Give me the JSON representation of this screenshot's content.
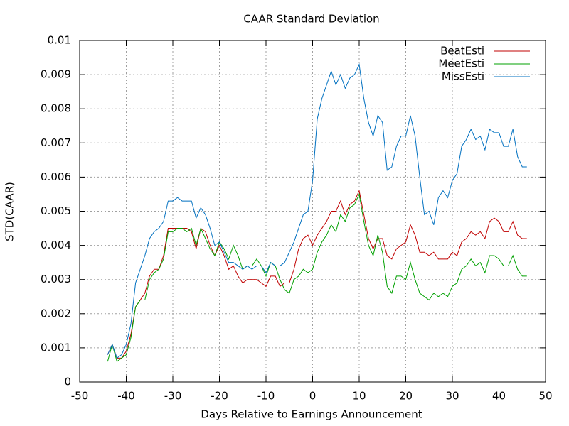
{
  "chart_data": {
    "type": "line",
    "title": "CAAR Standard Deviation",
    "xlabel": "Days Relative to Earnings Announcement",
    "ylabel": "STD(CAAR)",
    "xlim": [
      -50,
      50
    ],
    "xticks": [
      -50,
      -40,
      -30,
      -20,
      -10,
      0,
      10,
      20,
      30,
      40,
      50
    ],
    "ylim": [
      0,
      0.01
    ],
    "yticks": [
      0,
      0.001,
      0.002,
      0.003,
      0.004,
      0.005,
      0.006,
      0.007,
      0.008,
      0.009,
      0.01
    ],
    "grid": true,
    "legend": "top-right",
    "x": [
      -44,
      -43,
      -42,
      -41,
      -40,
      -39,
      -38,
      -37,
      -36,
      -35,
      -34,
      -33,
      -32,
      -31,
      -30,
      -29,
      -28,
      -27,
      -26,
      -25,
      -24,
      -23,
      -22,
      -21,
      -20,
      -19,
      -18,
      -17,
      -16,
      -15,
      -14,
      -13,
      -12,
      -11,
      -10,
      -9,
      -8,
      -7,
      -6,
      -5,
      -4,
      -3,
      -2,
      -1,
      0,
      1,
      2,
      3,
      4,
      5,
      6,
      7,
      8,
      9,
      10,
      11,
      12,
      13,
      14,
      15,
      16,
      17,
      18,
      19,
      20,
      21,
      22,
      23,
      24,
      25,
      26,
      27,
      28,
      29,
      30,
      31,
      32,
      33,
      34,
      35,
      36,
      37,
      38,
      39,
      40,
      41,
      42,
      43,
      44,
      45,
      46
    ],
    "series": [
      {
        "name": "BeatEsti",
        "color": "#c00000",
        "values": [
          0.0008,
          0.0011,
          0.0007,
          0.0007,
          0.0009,
          0.0014,
          0.0022,
          0.0024,
          0.0026,
          0.0031,
          0.0033,
          0.0033,
          0.0037,
          0.0045,
          0.0045,
          0.0045,
          0.0045,
          0.0045,
          0.0044,
          0.0039,
          0.0045,
          0.0044,
          0.004,
          0.0037,
          0.004,
          0.0037,
          0.0033,
          0.0034,
          0.0031,
          0.0029,
          0.003,
          0.003,
          0.003,
          0.0029,
          0.0028,
          0.0031,
          0.0031,
          0.0028,
          0.0029,
          0.0029,
          0.0033,
          0.0039,
          0.0042,
          0.0043,
          0.004,
          0.0043,
          0.0045,
          0.0047,
          0.005,
          0.005,
          0.0053,
          0.0049,
          0.0052,
          0.0053,
          0.0056,
          0.0049,
          0.0042,
          0.0039,
          0.0042,
          0.0042,
          0.0037,
          0.0036,
          0.0039,
          0.004,
          0.0041,
          0.0046,
          0.0043,
          0.0038,
          0.0038,
          0.0037,
          0.0038,
          0.0036,
          0.0036,
          0.0036,
          0.0038,
          0.0037,
          0.0041,
          0.0042,
          0.0044,
          0.0043,
          0.0044,
          0.0042,
          0.0047,
          0.0048,
          0.0047,
          0.0044,
          0.0044,
          0.0047,
          0.0043,
          0.0042,
          0.0042
        ]
      },
      {
        "name": "MeetEsti",
        "color": "#00a000",
        "values": [
          0.0006,
          0.0011,
          0.0006,
          0.0007,
          0.0008,
          0.0013,
          0.0022,
          0.0024,
          0.0024,
          0.003,
          0.0032,
          0.0033,
          0.0036,
          0.0044,
          0.0044,
          0.0045,
          0.0045,
          0.0044,
          0.0045,
          0.004,
          0.0045,
          0.0042,
          0.0039,
          0.0037,
          0.0041,
          0.0039,
          0.0036,
          0.004,
          0.0037,
          0.0033,
          0.0034,
          0.0034,
          0.0036,
          0.0034,
          0.0031,
          0.0035,
          0.0034,
          0.003,
          0.0027,
          0.0026,
          0.003,
          0.0031,
          0.0033,
          0.0032,
          0.0033,
          0.0038,
          0.0041,
          0.0043,
          0.0046,
          0.0044,
          0.0049,
          0.0047,
          0.0051,
          0.0052,
          0.0055,
          0.0047,
          0.004,
          0.0037,
          0.0043,
          0.0038,
          0.0028,
          0.0026,
          0.0031,
          0.0031,
          0.003,
          0.0035,
          0.003,
          0.0026,
          0.0025,
          0.0024,
          0.0026,
          0.0025,
          0.0026,
          0.0025,
          0.0028,
          0.0029,
          0.0033,
          0.0034,
          0.0036,
          0.0034,
          0.0035,
          0.0032,
          0.0037,
          0.0037,
          0.0036,
          0.0034,
          0.0034,
          0.0037,
          0.0033,
          0.0031,
          0.0031
        ]
      },
      {
        "name": "MissEsti",
        "color": "#0070c0",
        "values": [
          0.0008,
          0.0011,
          0.0007,
          0.0008,
          0.0011,
          0.0017,
          0.0029,
          0.0033,
          0.0037,
          0.0042,
          0.0044,
          0.0045,
          0.0047,
          0.0053,
          0.0053,
          0.0054,
          0.0053,
          0.0053,
          0.0053,
          0.0048,
          0.0051,
          0.0049,
          0.0045,
          0.004,
          0.0041,
          0.0038,
          0.0035,
          0.0035,
          0.0034,
          0.0033,
          0.0034,
          0.0033,
          0.0034,
          0.0034,
          0.0032,
          0.0035,
          0.0034,
          0.0034,
          0.0035,
          0.0038,
          0.0041,
          0.0045,
          0.0049,
          0.005,
          0.0059,
          0.0077,
          0.0083,
          0.0087,
          0.0091,
          0.0087,
          0.009,
          0.0086,
          0.0089,
          0.009,
          0.0093,
          0.0083,
          0.0076,
          0.0072,
          0.0078,
          0.0076,
          0.0062,
          0.0063,
          0.0069,
          0.0072,
          0.0072,
          0.0078,
          0.0072,
          0.006,
          0.0049,
          0.005,
          0.0046,
          0.0054,
          0.0056,
          0.0054,
          0.0059,
          0.0061,
          0.0069,
          0.0071,
          0.0074,
          0.0071,
          0.0072,
          0.0068,
          0.0074,
          0.0073,
          0.0073,
          0.0069,
          0.0069,
          0.0074,
          0.0066,
          0.0063,
          0.0063
        ]
      }
    ]
  }
}
